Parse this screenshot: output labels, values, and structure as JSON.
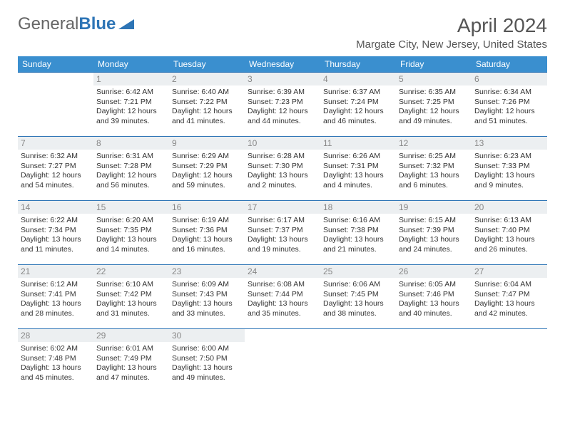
{
  "logo": {
    "text1": "General",
    "text2": "Blue"
  },
  "title": "April 2024",
  "subtitle": "Margate City, New Jersey, United States",
  "headers": [
    "Sunday",
    "Monday",
    "Tuesday",
    "Wednesday",
    "Thursday",
    "Friday",
    "Saturday"
  ],
  "header_bg": "#3a8fcf",
  "header_fg": "#ffffff",
  "border_color": "#2e75b6",
  "daynum_bg": "#eceff1",
  "weeks": [
    [
      {
        "n": "",
        "sr": "",
        "ss": "",
        "d1": "",
        "d2": ""
      },
      {
        "n": "1",
        "sr": "Sunrise: 6:42 AM",
        "ss": "Sunset: 7:21 PM",
        "d1": "Daylight: 12 hours",
        "d2": "and 39 minutes."
      },
      {
        "n": "2",
        "sr": "Sunrise: 6:40 AM",
        "ss": "Sunset: 7:22 PM",
        "d1": "Daylight: 12 hours",
        "d2": "and 41 minutes."
      },
      {
        "n": "3",
        "sr": "Sunrise: 6:39 AM",
        "ss": "Sunset: 7:23 PM",
        "d1": "Daylight: 12 hours",
        "d2": "and 44 minutes."
      },
      {
        "n": "4",
        "sr": "Sunrise: 6:37 AM",
        "ss": "Sunset: 7:24 PM",
        "d1": "Daylight: 12 hours",
        "d2": "and 46 minutes."
      },
      {
        "n": "5",
        "sr": "Sunrise: 6:35 AM",
        "ss": "Sunset: 7:25 PM",
        "d1": "Daylight: 12 hours",
        "d2": "and 49 minutes."
      },
      {
        "n": "6",
        "sr": "Sunrise: 6:34 AM",
        "ss": "Sunset: 7:26 PM",
        "d1": "Daylight: 12 hours",
        "d2": "and 51 minutes."
      }
    ],
    [
      {
        "n": "7",
        "sr": "Sunrise: 6:32 AM",
        "ss": "Sunset: 7:27 PM",
        "d1": "Daylight: 12 hours",
        "d2": "and 54 minutes."
      },
      {
        "n": "8",
        "sr": "Sunrise: 6:31 AM",
        "ss": "Sunset: 7:28 PM",
        "d1": "Daylight: 12 hours",
        "d2": "and 56 minutes."
      },
      {
        "n": "9",
        "sr": "Sunrise: 6:29 AM",
        "ss": "Sunset: 7:29 PM",
        "d1": "Daylight: 12 hours",
        "d2": "and 59 minutes."
      },
      {
        "n": "10",
        "sr": "Sunrise: 6:28 AM",
        "ss": "Sunset: 7:30 PM",
        "d1": "Daylight: 13 hours",
        "d2": "and 2 minutes."
      },
      {
        "n": "11",
        "sr": "Sunrise: 6:26 AM",
        "ss": "Sunset: 7:31 PM",
        "d1": "Daylight: 13 hours",
        "d2": "and 4 minutes."
      },
      {
        "n": "12",
        "sr": "Sunrise: 6:25 AM",
        "ss": "Sunset: 7:32 PM",
        "d1": "Daylight: 13 hours",
        "d2": "and 6 minutes."
      },
      {
        "n": "13",
        "sr": "Sunrise: 6:23 AM",
        "ss": "Sunset: 7:33 PM",
        "d1": "Daylight: 13 hours",
        "d2": "and 9 minutes."
      }
    ],
    [
      {
        "n": "14",
        "sr": "Sunrise: 6:22 AM",
        "ss": "Sunset: 7:34 PM",
        "d1": "Daylight: 13 hours",
        "d2": "and 11 minutes."
      },
      {
        "n": "15",
        "sr": "Sunrise: 6:20 AM",
        "ss": "Sunset: 7:35 PM",
        "d1": "Daylight: 13 hours",
        "d2": "and 14 minutes."
      },
      {
        "n": "16",
        "sr": "Sunrise: 6:19 AM",
        "ss": "Sunset: 7:36 PM",
        "d1": "Daylight: 13 hours",
        "d2": "and 16 minutes."
      },
      {
        "n": "17",
        "sr": "Sunrise: 6:17 AM",
        "ss": "Sunset: 7:37 PM",
        "d1": "Daylight: 13 hours",
        "d2": "and 19 minutes."
      },
      {
        "n": "18",
        "sr": "Sunrise: 6:16 AM",
        "ss": "Sunset: 7:38 PM",
        "d1": "Daylight: 13 hours",
        "d2": "and 21 minutes."
      },
      {
        "n": "19",
        "sr": "Sunrise: 6:15 AM",
        "ss": "Sunset: 7:39 PM",
        "d1": "Daylight: 13 hours",
        "d2": "and 24 minutes."
      },
      {
        "n": "20",
        "sr": "Sunrise: 6:13 AM",
        "ss": "Sunset: 7:40 PM",
        "d1": "Daylight: 13 hours",
        "d2": "and 26 minutes."
      }
    ],
    [
      {
        "n": "21",
        "sr": "Sunrise: 6:12 AM",
        "ss": "Sunset: 7:41 PM",
        "d1": "Daylight: 13 hours",
        "d2": "and 28 minutes."
      },
      {
        "n": "22",
        "sr": "Sunrise: 6:10 AM",
        "ss": "Sunset: 7:42 PM",
        "d1": "Daylight: 13 hours",
        "d2": "and 31 minutes."
      },
      {
        "n": "23",
        "sr": "Sunrise: 6:09 AM",
        "ss": "Sunset: 7:43 PM",
        "d1": "Daylight: 13 hours",
        "d2": "and 33 minutes."
      },
      {
        "n": "24",
        "sr": "Sunrise: 6:08 AM",
        "ss": "Sunset: 7:44 PM",
        "d1": "Daylight: 13 hours",
        "d2": "and 35 minutes."
      },
      {
        "n": "25",
        "sr": "Sunrise: 6:06 AM",
        "ss": "Sunset: 7:45 PM",
        "d1": "Daylight: 13 hours",
        "d2": "and 38 minutes."
      },
      {
        "n": "26",
        "sr": "Sunrise: 6:05 AM",
        "ss": "Sunset: 7:46 PM",
        "d1": "Daylight: 13 hours",
        "d2": "and 40 minutes."
      },
      {
        "n": "27",
        "sr": "Sunrise: 6:04 AM",
        "ss": "Sunset: 7:47 PM",
        "d1": "Daylight: 13 hours",
        "d2": "and 42 minutes."
      }
    ],
    [
      {
        "n": "28",
        "sr": "Sunrise: 6:02 AM",
        "ss": "Sunset: 7:48 PM",
        "d1": "Daylight: 13 hours",
        "d2": "and 45 minutes."
      },
      {
        "n": "29",
        "sr": "Sunrise: 6:01 AM",
        "ss": "Sunset: 7:49 PM",
        "d1": "Daylight: 13 hours",
        "d2": "and 47 minutes."
      },
      {
        "n": "30",
        "sr": "Sunrise: 6:00 AM",
        "ss": "Sunset: 7:50 PM",
        "d1": "Daylight: 13 hours",
        "d2": "and 49 minutes."
      },
      {
        "n": "",
        "sr": "",
        "ss": "",
        "d1": "",
        "d2": ""
      },
      {
        "n": "",
        "sr": "",
        "ss": "",
        "d1": "",
        "d2": ""
      },
      {
        "n": "",
        "sr": "",
        "ss": "",
        "d1": "",
        "d2": ""
      },
      {
        "n": "",
        "sr": "",
        "ss": "",
        "d1": "",
        "d2": ""
      }
    ]
  ]
}
